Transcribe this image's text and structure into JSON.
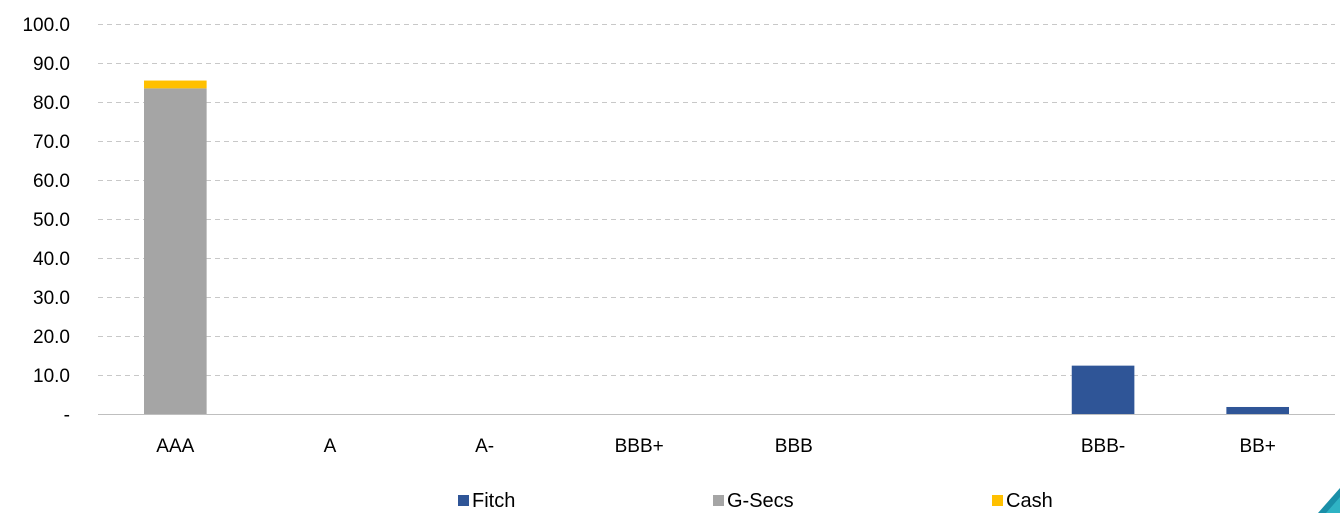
{
  "chart_data": {
    "type": "bar",
    "stacked": true,
    "title": "",
    "xlabel": "",
    "ylabel": "",
    "ylim": [
      0,
      100
    ],
    "yticks": [
      0,
      10,
      20,
      30,
      40,
      50,
      60,
      70,
      80,
      90,
      100
    ],
    "ytick_labels": [
      "-",
      "10.0",
      "20.0",
      "30.0",
      "40.0",
      "50.0",
      "60.0",
      "70.0",
      "80.0",
      "90.0",
      "100.0"
    ],
    "categories": [
      "AAA",
      "A",
      "A-",
      "BBB+",
      "BBB",
      "",
      "BBB-",
      "BB+"
    ],
    "grid": "horizontal dashed",
    "legend_position": "bottom",
    "series": [
      {
        "name": "Fitch",
        "color": "#2f5597",
        "values": [
          0,
          0,
          0,
          0,
          0,
          0,
          12.4,
          1.8
        ]
      },
      {
        "name": "G-Secs",
        "color": "#a5a5a5",
        "values": [
          83.5,
          0,
          0,
          0,
          0,
          0,
          0,
          0
        ]
      },
      {
        "name": "Cash",
        "color": "#ffc000",
        "values": [
          2.0,
          0,
          0,
          0,
          0,
          0,
          0,
          0
        ]
      }
    ]
  }
}
